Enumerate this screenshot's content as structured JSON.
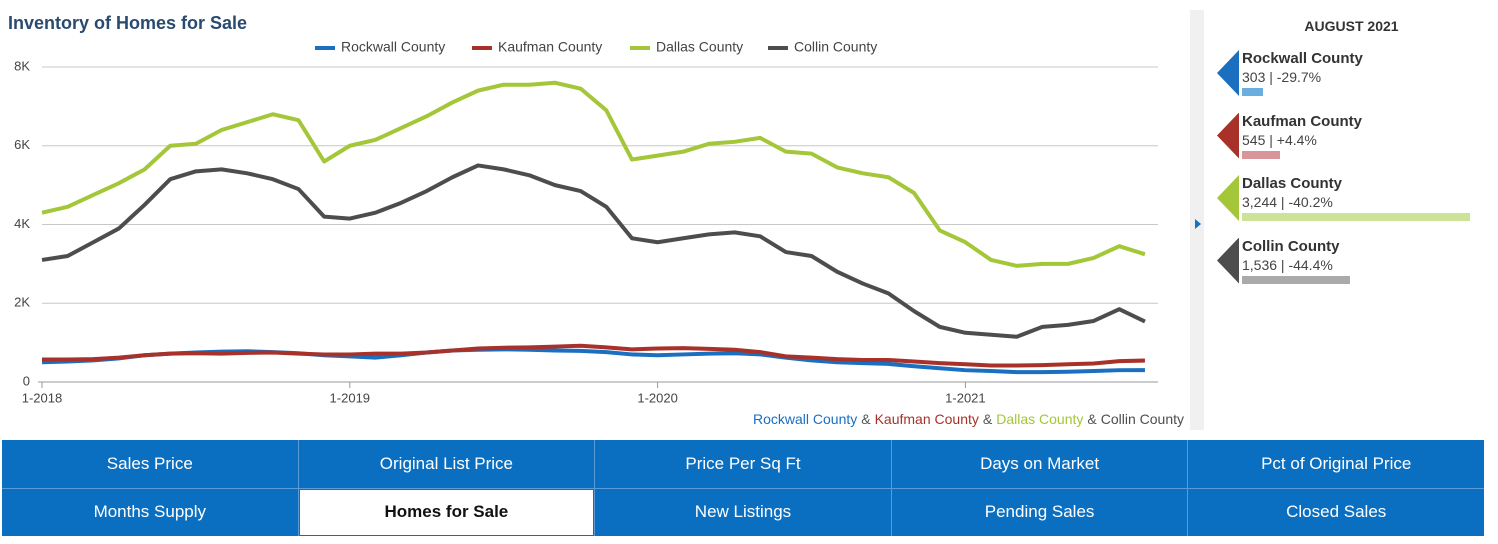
{
  "chart_data": {
    "type": "line",
    "title": "Inventory of Homes for Sale",
    "categories": [
      "1-2018",
      null,
      null,
      null,
      null,
      null,
      null,
      null,
      null,
      null,
      null,
      null,
      "1-2019",
      null,
      null,
      null,
      null,
      null,
      null,
      null,
      null,
      null,
      null,
      null,
      "1-2020",
      null,
      null,
      null,
      null,
      null,
      null,
      null,
      null,
      null,
      null,
      null,
      "1-2021",
      null,
      null,
      null,
      null,
      null,
      null,
      null
    ],
    "series": [
      {
        "name": "Rockwall County",
        "color": "#1a6fc0",
        "values": [
          500,
          520,
          550,
          600,
          680,
          720,
          750,
          770,
          780,
          760,
          730,
          680,
          650,
          620,
          680,
          750,
          800,
          820,
          830,
          820,
          800,
          790,
          760,
          700,
          680,
          700,
          720,
          730,
          700,
          620,
          550,
          500,
          480,
          460,
          400,
          350,
          300,
          280,
          250,
          250,
          260,
          280,
          300,
          303
        ]
      },
      {
        "name": "Kaufman County",
        "color": "#a8322a",
        "values": [
          570,
          570,
          580,
          620,
          680,
          720,
          730,
          720,
          740,
          750,
          720,
          700,
          700,
          720,
          720,
          750,
          800,
          850,
          870,
          880,
          900,
          920,
          880,
          830,
          850,
          860,
          840,
          820,
          760,
          650,
          620,
          580,
          560,
          560,
          520,
          480,
          450,
          420,
          420,
          430,
          450,
          470,
          530,
          545
        ]
      },
      {
        "name": "Dallas County",
        "color": "#a4c639",
        "values": [
          4300,
          4450,
          4750,
          5050,
          5400,
          6000,
          6050,
          6400,
          6600,
          6800,
          6650,
          5600,
          6000,
          6150,
          6450,
          6750,
          7100,
          7400,
          7550,
          7550,
          7600,
          7450,
          6900,
          5650,
          5750,
          5850,
          6050,
          6100,
          6200,
          5850,
          5800,
          5450,
          5300,
          5200,
          4800,
          3850,
          3550,
          3100,
          2950,
          3000,
          3000,
          3150,
          3450,
          3244
        ]
      },
      {
        "name": "Collin County",
        "color": "#4d4d4d",
        "values": [
          3100,
          3200,
          3550,
          3900,
          4500,
          5150,
          5350,
          5400,
          5300,
          5150,
          4900,
          4200,
          4150,
          4300,
          4550,
          4850,
          5200,
          5500,
          5400,
          5250,
          5000,
          4850,
          4450,
          3650,
          3550,
          3650,
          3750,
          3800,
          3700,
          3300,
          3200,
          2800,
          2500,
          2250,
          1800,
          1400,
          1250,
          1200,
          1150,
          1400,
          1450,
          1550,
          1850,
          1536
        ]
      }
    ],
    "ylim": [
      0,
      8000
    ],
    "yticks": [
      0,
      {
        "value": 2000,
        "label": "2K"
      },
      {
        "value": 4000,
        "label": "4K"
      },
      {
        "value": 6000,
        "label": "6K"
      },
      {
        "value": 8000,
        "label": "8K"
      }
    ],
    "grid": true,
    "caption_joiner": "&"
  },
  "sidebar": {
    "title": "AUGUST 2021",
    "items": [
      {
        "name": "Rockwall County",
        "label": "303 | -29.7%",
        "value": 303,
        "color": "#1a6fc0",
        "bar_color": "#6aaee0"
      },
      {
        "name": "Kaufman County",
        "label": "545 | +4.4%",
        "value": 545,
        "color": "#a8322a",
        "bar_color": "#d9959a"
      },
      {
        "name": "Dallas County",
        "label": "3,244 | -40.2%",
        "value": 3244,
        "color": "#a4c639",
        "bar_color": "#cde39a"
      },
      {
        "name": "Collin County",
        "label": "1,536 | -44.4%",
        "value": 1536,
        "color": "#4d4d4d",
        "bar_color": "#aaaaaa"
      }
    ]
  },
  "tabs": {
    "active": 6,
    "items": [
      "Sales Price",
      "Original List Price",
      "Price Per Sq Ft",
      "Days on Market",
      "Pct of Original Price",
      "Months Supply",
      "Homes for Sale",
      "New Listings",
      "Pending Sales",
      "Closed Sales"
    ]
  }
}
